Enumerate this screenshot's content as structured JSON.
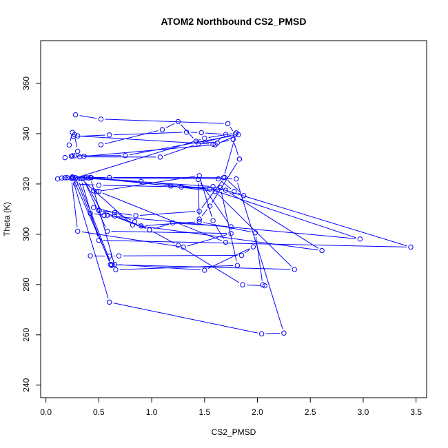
{
  "chart_data": {
    "type": "line",
    "title": "ATOM2 Northbound CS2_PMSD",
    "xlabel": "CS2_PMSD",
    "ylabel": "Theta (K)",
    "xlim": [
      -0.05,
      3.6
    ],
    "ylim": [
      235,
      377
    ],
    "xticks": [
      0,
      0.5,
      1,
      1.5,
      2,
      2.5,
      3,
      3.5
    ],
    "xtick_labels": [
      "0.0",
      "0.5",
      "1.0",
      "1.5",
      "2.0",
      "2.5",
      "3.0",
      "3.5"
    ],
    "yticks": [
      240,
      260,
      280,
      300,
      320,
      340,
      360
    ],
    "ytick_labels": [
      "240",
      "260",
      "280",
      "300",
      "320",
      "340",
      "360"
    ],
    "grid": false,
    "marker": "open-circle",
    "color": "#0000ff",
    "series": [
      {
        "x": [
          0.11,
          0.2,
          0.25,
          0.62,
          0.61,
          0.28,
          0.18
        ],
        "y": [
          322,
          322.5,
          322.8,
          287.6,
          288.0,
          322.3,
          322.5
        ]
      },
      {
        "x": [
          0.2,
          0.38,
          1.8,
          2.25,
          2.04,
          0.6,
          0.25
        ],
        "y": [
          322.5,
          322.5,
          322.0,
          260.7,
          260.4,
          273.0,
          322.2
        ]
      },
      {
        "x": [
          0.24,
          0.3,
          1.3,
          1.75,
          0.58,
          0.35
        ],
        "y": [
          322.3,
          301.2,
          294.9,
          300.3,
          301.2,
          322.4
        ]
      },
      {
        "x": [
          0.15,
          0.25,
          1.58,
          3.45,
          0.5,
          0.33
        ],
        "y": [
          322.4,
          322.6,
          319.0,
          294.9,
          297.6,
          322.1
        ]
      },
      {
        "x": [
          0.28,
          0.6,
          1.68,
          1.8,
          1.5,
          0.28
        ],
        "y": [
          322.5,
          322.6,
          322.5,
          340.3,
          338.2,
          322.4
        ]
      },
      {
        "x": [
          0.42,
          1.18,
          1.6,
          2.35,
          0.62,
          0.3
        ],
        "y": [
          322.5,
          319.2,
          317.0,
          286.0,
          287.9,
          322.0
        ]
      },
      {
        "x": [
          0.28,
          0.5,
          1.65,
          1.81,
          0.66,
          0.42
        ],
        "y": [
          320.0,
          319.5,
          318.5,
          287.6,
          285.9,
          322.6
        ]
      },
      {
        "x": [
          0.4,
          0.9,
          1.55,
          2.97,
          0.55,
          0.35
        ],
        "y": [
          322.4,
          321.0,
          318.0,
          298.1,
          307.5,
          322.2
        ]
      },
      {
        "x": [
          0.43,
          1.28,
          1.7,
          2.61,
          0.82,
          0.33
        ],
        "y": [
          322.5,
          318.8,
          317.5,
          293.5,
          303.7,
          322.1
        ]
      },
      {
        "x": [
          0.18,
          0.24,
          0.3,
          0.27,
          0.25,
          0.22
        ],
        "y": [
          330.5,
          331.0,
          333.0,
          339.6,
          340.5,
          335.5
        ]
      },
      {
        "x": [
          0.25,
          0.36,
          1.6,
          1.82,
          0.75,
          0.27
        ],
        "y": [
          331.2,
          331.0,
          335.6,
          339.6,
          331.3,
          331.2
        ]
      },
      {
        "x": [
          0.28,
          0.52,
          1.72,
          1.79,
          1.44,
          1.08,
          0.32
        ],
        "y": [
          347.5,
          345.8,
          344.0,
          339.8,
          336.0,
          330.7,
          330.8
        ]
      },
      {
        "x": [
          0.26,
          0.6,
          1.33,
          1.47,
          1.7,
          1.58,
          0.3
        ],
        "y": [
          338.9,
          339.5,
          340.6,
          340.4,
          339.7,
          335.8,
          339.1
        ]
      },
      {
        "x": [
          0.52,
          1.1,
          1.25,
          1.42,
          1.62,
          1.77,
          1.83
        ],
        "y": [
          335.6,
          341.6,
          344.8,
          337.0,
          336.3,
          337.7,
          329.9
        ]
      },
      {
        "x": [
          1.83,
          1.55,
          1.45,
          1.44,
          1.75,
          1.2,
          0.98,
          0.5
        ],
        "y": [
          329.9,
          311.2,
          306.0,
          321.8,
          303.0,
          304.5,
          301.7,
          309.5
        ]
      },
      {
        "x": [
          0.5,
          0.85,
          1.45,
          1.69,
          1.87,
          1.78,
          1.63
        ],
        "y": [
          309.5,
          307.4,
          309.2,
          322.6,
          315.4,
          317.0,
          322.0
        ]
      },
      {
        "x": [
          0.45,
          0.65,
          0.84,
          0.98,
          1.25,
          1.86,
          2.07
        ],
        "y": [
          310.6,
          308.6,
          305.0,
          301.8,
          295.6,
          279.9,
          279.5
        ]
      },
      {
        "x": [
          0.42,
          0.6,
          0.69,
          1.85,
          1.96,
          1.5,
          0.65
        ],
        "y": [
          291.4,
          291.3,
          291.4,
          291.6,
          295.0,
          285.7,
          288.0
        ]
      },
      {
        "x": [
          0.42,
          0.58,
          0.65,
          0.9,
          1.45,
          1.98,
          2.05
        ],
        "y": [
          308.3,
          307.6,
          307.3,
          303.3,
          305.0,
          300.6,
          279.9
        ]
      },
      {
        "x": [
          0.45,
          0.5,
          1.7,
          1.58,
          1.45,
          0.48
        ],
        "y": [
          317.3,
          317.0,
          296.8,
          305.4,
          323.3,
          317.0
        ]
      }
    ]
  }
}
